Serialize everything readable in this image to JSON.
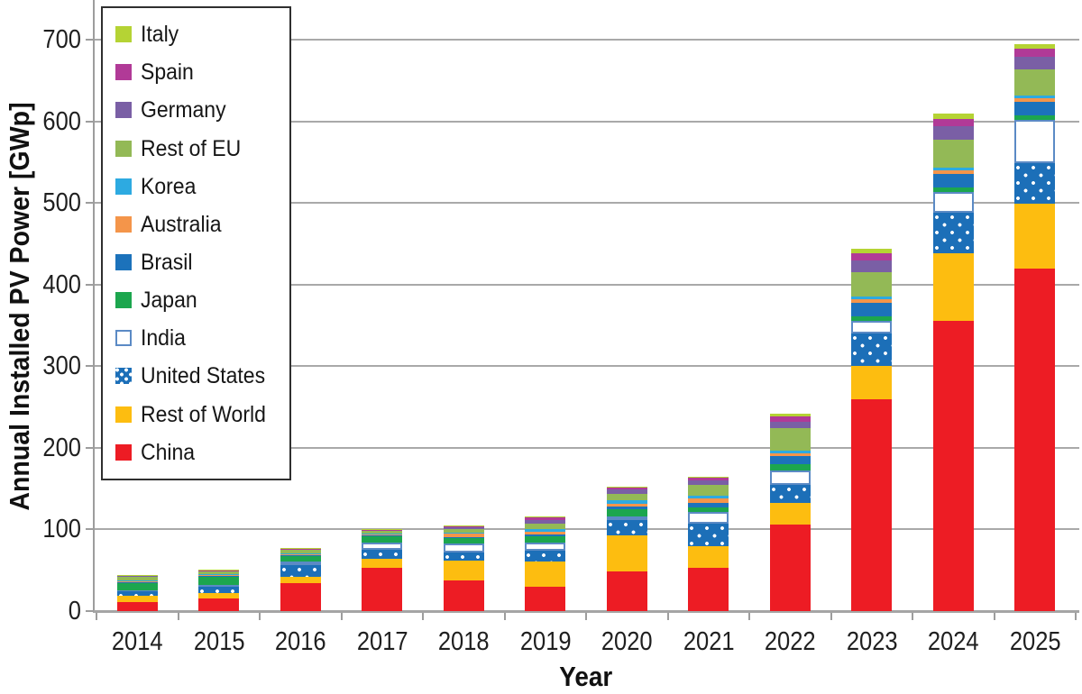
{
  "chart_data": {
    "type": "bar",
    "stacked": true,
    "title": "",
    "xlabel": "Year",
    "ylabel": "Annual Installed PV Power [GWp]",
    "unit": "GWp",
    "ylim": [
      0,
      700
    ],
    "yticks": [
      0,
      100,
      200,
      300,
      400,
      500,
      600,
      700
    ],
    "grid": "horizontal",
    "legend_position": "upper-left-inside",
    "legend_order_top_to_bottom": [
      "Italy",
      "Spain",
      "Germany",
      "Rest of EU",
      "Korea",
      "Australia",
      "Brasil",
      "Japan",
      "India",
      "United States",
      "Rest of World",
      "China"
    ],
    "categories": [
      "2014",
      "2015",
      "2016",
      "2017",
      "2018",
      "2019",
      "2020",
      "2021",
      "2022",
      "2023",
      "2024",
      "2025"
    ],
    "series": [
      {
        "name": "China",
        "color": "#ed1c24",
        "values": [
          10.6,
          15.1,
          34.5,
          53.1,
          38.0,
          30.1,
          48.2,
          53.0,
          106.0,
          260.0,
          355.0,
          420.0
        ]
      },
      {
        "name": "Rest of World",
        "color": "#fdbd10",
        "values": [
          8.0,
          7.4,
          7.0,
          11.0,
          23.5,
          31.0,
          44.0,
          27.0,
          27.0,
          40.0,
          83.0,
          79.0
        ]
      },
      {
        "name": "United States",
        "color": "#1c6fb8",
        "pattern": "dots",
        "dot_color": "#ffffff",
        "values": [
          6.2,
          7.3,
          14.7,
          10.7,
          10.6,
          13.3,
          19.7,
          27.0,
          22.0,
          40.0,
          50.0,
          50.0
        ]
      },
      {
        "name": "India",
        "color": "#ffffff",
        "pattern": "hollow",
        "border_color": "#5b8ac5",
        "values": [
          0.9,
          2.0,
          4.1,
          9.6,
          10.8,
          9.9,
          4.4,
          14.0,
          17.5,
          15.0,
          25.0,
          53.0
        ]
      },
      {
        "name": "Japan",
        "color": "#1ca64e",
        "values": [
          9.7,
          11.0,
          8.6,
          7.0,
          6.6,
          7.0,
          8.2,
          6.5,
          7.0,
          6.5,
          5.5,
          5.5
        ]
      },
      {
        "name": "Brasil",
        "color": "#1c72bb",
        "values": [
          0.1,
          0.1,
          0.1,
          0.9,
          1.2,
          2.0,
          3.1,
          5.5,
          10.0,
          16.0,
          16.5,
          16.0
        ]
      },
      {
        "name": "Australia",
        "color": "#f4954a",
        "values": [
          0.9,
          0.9,
          0.8,
          1.3,
          3.8,
          3.7,
          4.1,
          4.6,
          4.0,
          5.0,
          5.0,
          5.0
        ]
      },
      {
        "name": "Korea",
        "color": "#2daae1",
        "values": [
          0.9,
          1.0,
          0.9,
          1.2,
          2.0,
          3.1,
          4.1,
          4.2,
          3.5,
          3.3,
          3.5,
          3.0
        ]
      },
      {
        "name": "Rest of EU",
        "color": "#93b956",
        "values": [
          4.5,
          3.6,
          4.2,
          3.0,
          4.5,
          7.0,
          8.0,
          13.0,
          27.0,
          29.0,
          34.0,
          32.0
        ]
      },
      {
        "name": "Germany",
        "color": "#7a5fa5",
        "values": [
          1.9,
          1.5,
          1.5,
          1.7,
          3.0,
          3.9,
          4.9,
          5.3,
          7.5,
          15.0,
          16.0,
          15.0
        ]
      },
      {
        "name": "Spain",
        "color": "#b13a97",
        "values": [
          0.1,
          0.1,
          0.1,
          0.1,
          0.3,
          4.4,
          2.8,
          3.8,
          7.5,
          8.5,
          9.0,
          10.0
        ]
      },
      {
        "name": "Italy",
        "color": "#b5d334",
        "values": [
          0.4,
          0.3,
          0.4,
          0.4,
          0.4,
          0.6,
          0.8,
          0.9,
          2.5,
          5.2,
          7.0,
          6.5
        ]
      }
    ],
    "approx_totals": [
      44,
      50,
      77,
      100,
      105,
      116,
      152,
      165,
      242,
      444,
      610,
      695
    ]
  },
  "style_colors": {
    "gridline": "#a9a9a9",
    "axis_line": "#9d9d9d",
    "text": "#1c1c1c",
    "legend_border": "#2f2f2f",
    "background": "#ffffff"
  }
}
